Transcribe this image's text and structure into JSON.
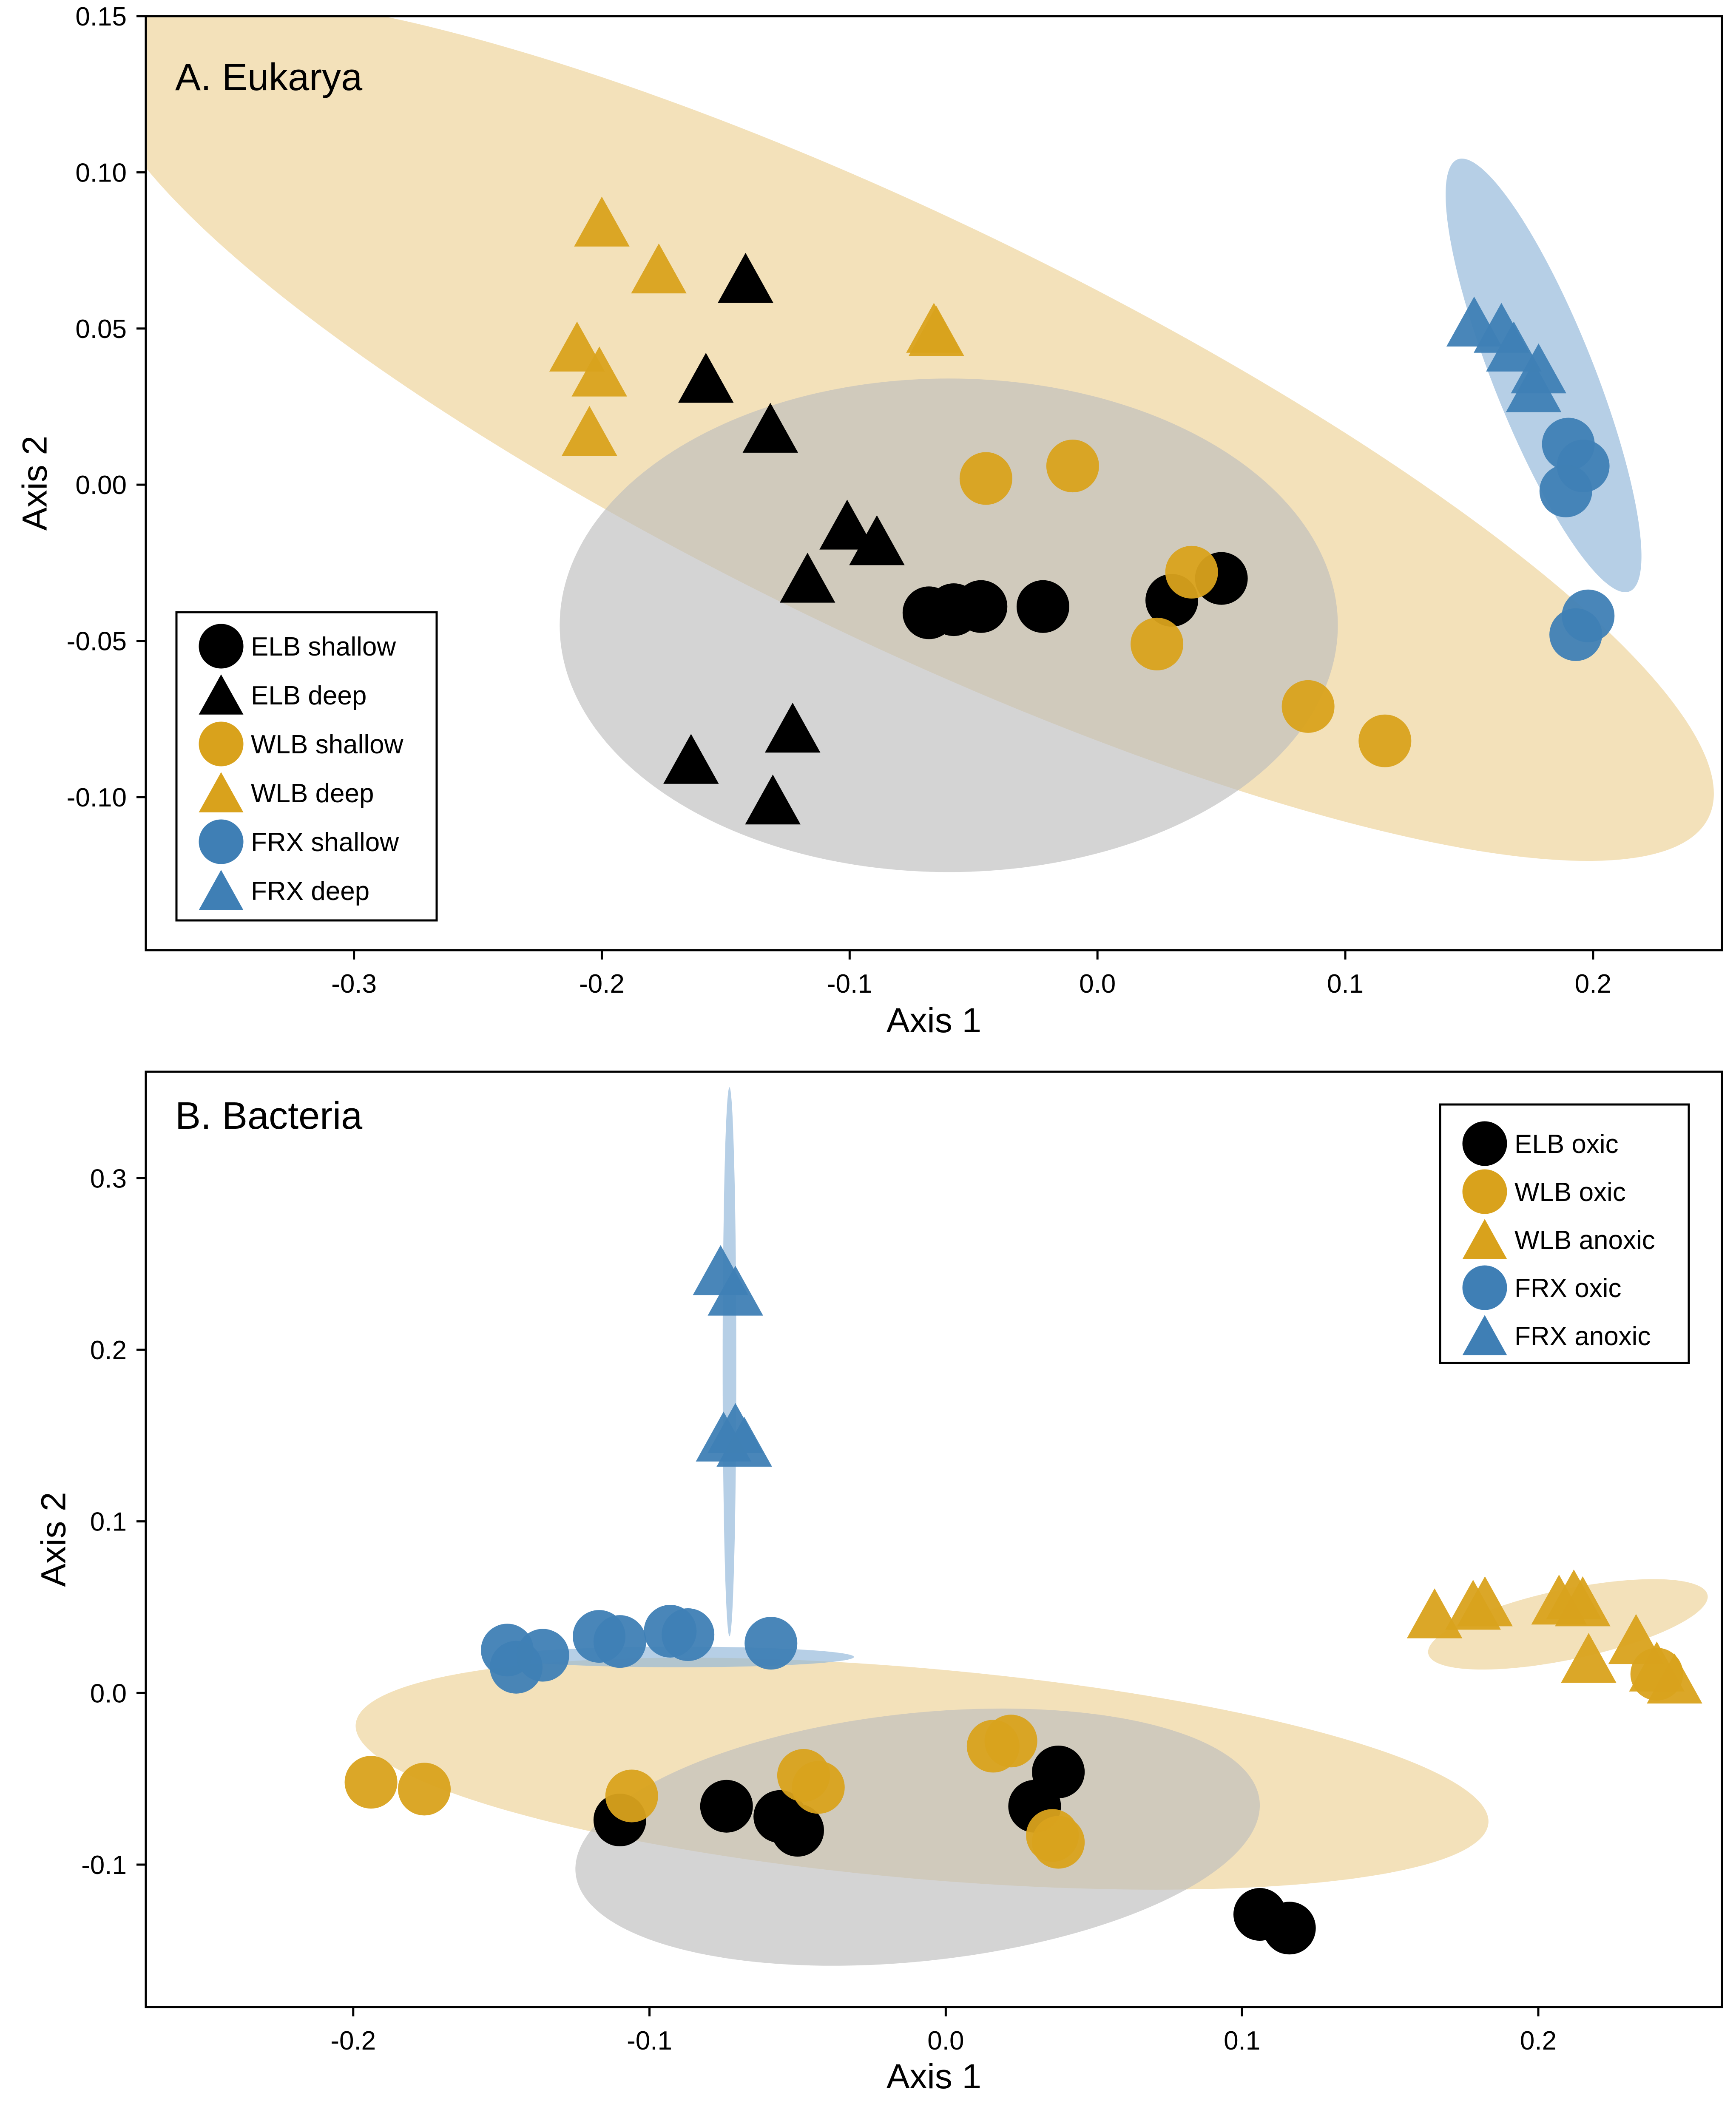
{
  "colors": {
    "black": "#000000",
    "gold": "#d9a21c",
    "blue": "#3f7fb5",
    "gold_ellipse": "#ecd195",
    "blue_ellipse": "#8fb5d8",
    "gray_ellipse": "#bdbdbd"
  },
  "chart_data": [
    {
      "type": "scatter",
      "title": "A. Eukarya",
      "xlabel": "Axis 1",
      "ylabel": "Axis 2",
      "xlim": [
        -0.384,
        0.252
      ],
      "ylim": [
        -0.149,
        0.15
      ],
      "xticks": [
        -0.3,
        -0.2,
        -0.1,
        0.0,
        0.1,
        0.2
      ],
      "xtick_labels": [
        "-0.3",
        "-0.2",
        "-0.1",
        "0.0",
        "0.1",
        "0.2"
      ],
      "yticks": [
        -0.1,
        -0.05,
        0.0,
        0.05,
        0.1,
        0.15
      ],
      "ytick_labels": [
        "-0.10",
        "-0.05",
        "0.00",
        "0.05",
        "0.10",
        "0.15"
      ],
      "legend_position": "bottom-left",
      "ellipses": [
        {
          "group": "WLB",
          "color": "gold_ellipse",
          "cx": -0.078,
          "cy": 0.018,
          "rx": 0.319,
          "ry": 0.075,
          "angle_deg": 25.8
        },
        {
          "group": "ELB",
          "color": "gray_ellipse",
          "cx": -0.06,
          "cy": -0.045,
          "rx": 0.157,
          "ry": 0.079,
          "angle_deg": 0
        },
        {
          "group": "FRX",
          "color": "blue_ellipse",
          "cx": 0.18,
          "cy": 0.035,
          "rx": 0.083,
          "ry": 0.018,
          "angle_deg": 68.3
        }
      ],
      "series": [
        {
          "name": "ELB shallow",
          "marker": "circle",
          "color": "black",
          "points": [
            [
              -0.068,
              -0.041
            ],
            [
              -0.058,
              -0.04
            ],
            [
              -0.047,
              -0.039
            ],
            [
              -0.022,
              -0.039
            ],
            [
              0.03,
              -0.037
            ],
            [
              0.05,
              -0.03
            ]
          ]
        },
        {
          "name": "ELB deep",
          "marker": "triangle",
          "color": "black",
          "points": [
            [
              -0.142,
              0.066
            ],
            [
              -0.158,
              0.034
            ],
            [
              -0.132,
              0.018
            ],
            [
              -0.101,
              -0.013
            ],
            [
              -0.089,
              -0.018
            ],
            [
              -0.117,
              -0.03
            ],
            [
              -0.164,
              -0.088
            ],
            [
              -0.123,
              -0.078
            ],
            [
              -0.131,
              -0.101
            ]
          ]
        },
        {
          "name": "WLB shallow",
          "marker": "circle",
          "color": "gold",
          "points": [
            [
              -0.045,
              0.002
            ],
            [
              -0.01,
              0.006
            ],
            [
              0.038,
              -0.028
            ],
            [
              0.024,
              -0.051
            ],
            [
              0.085,
              -0.071
            ],
            [
              0.116,
              -0.082
            ]
          ]
        },
        {
          "name": "WLB deep",
          "marker": "triangle",
          "color": "gold",
          "points": [
            [
              -0.2,
              0.084
            ],
            [
              -0.177,
              0.069
            ],
            [
              -0.21,
              0.044
            ],
            [
              -0.201,
              0.036
            ],
            [
              -0.205,
              0.017
            ],
            [
              -0.065,
              0.049
            ],
            [
              -0.066,
              0.05
            ]
          ]
        },
        {
          "name": "FRX shallow",
          "marker": "circle",
          "color": "blue",
          "points": [
            [
              0.19,
              0.013
            ],
            [
              0.196,
              0.006
            ],
            [
              0.189,
              -0.002
            ],
            [
              0.198,
              -0.042
            ],
            [
              0.193,
              -0.048
            ]
          ]
        },
        {
          "name": "FRX deep",
          "marker": "triangle",
          "color": "blue",
          "points": [
            [
              0.152,
              0.052
            ],
            [
              0.163,
              0.05
            ],
            [
              0.168,
              0.044
            ],
            [
              0.178,
              0.037
            ],
            [
              0.176,
              0.031
            ]
          ]
        }
      ]
    },
    {
      "type": "scatter",
      "title": "B. Bacteria",
      "xlabel": "Axis 1",
      "ylabel": "Axis 2",
      "xlim": [
        -0.27,
        0.262
      ],
      "ylim": [
        -0.183,
        0.362
      ],
      "xticks": [
        -0.2,
        -0.1,
        0.0,
        0.1,
        0.2
      ],
      "xtick_labels": [
        "-0.2",
        "-0.1",
        "0.0",
        "0.1",
        "0.2"
      ],
      "yticks": [
        -0.1,
        0.0,
        0.1,
        0.2,
        0.3
      ],
      "ytick_labels": [
        "-0.1",
        "0.0",
        "0.1",
        "0.2",
        "0.3"
      ],
      "legend_position": "top-right",
      "ellipses": [
        {
          "group": "WLB oxic",
          "color": "gold_ellipse",
          "cx": -0.008,
          "cy": -0.047,
          "rx": 0.243,
          "ry": 0.045,
          "angle_deg": 5.0
        },
        {
          "group": "ELB",
          "color": "gray_ellipse",
          "cx": -0.0095,
          "cy": -0.084,
          "rx": 0.147,
          "ry": 0.053,
          "angle_deg": -6.1
        },
        {
          "group": "WLB anoxic",
          "color": "gold_ellipse",
          "cx": 0.21,
          "cy": 0.04,
          "rx": 0.061,
          "ry": 0.015,
          "angle_deg": -11.9
        },
        {
          "group": "FRX oxic",
          "color": "blue_ellipse",
          "cx": -0.09,
          "cy": 0.021,
          "rx": 0.059,
          "ry": 0.006,
          "angle_deg": 0
        },
        {
          "group": "FRX anoxic",
          "color": "blue_ellipse",
          "cx": -0.073,
          "cy": 0.193,
          "rx": 0.0023,
          "ry": 0.16,
          "angle_deg": 0
        }
      ],
      "series": [
        {
          "name": "ELB oxic",
          "marker": "circle",
          "color": "black",
          "points": [
            [
              -0.11,
              -0.074
            ],
            [
              -0.074,
              -0.066
            ],
            [
              -0.056,
              -0.072
            ],
            [
              -0.05,
              -0.08
            ],
            [
              0.03,
              -0.066
            ],
            [
              0.038,
              -0.046
            ],
            [
              0.106,
              -0.129
            ],
            [
              0.116,
              -0.137
            ]
          ]
        },
        {
          "name": "WLB oxic",
          "marker": "circle",
          "color": "gold",
          "points": [
            [
              -0.194,
              -0.052
            ],
            [
              -0.176,
              -0.056
            ],
            [
              -0.106,
              -0.06
            ],
            [
              -0.048,
              -0.048
            ],
            [
              -0.043,
              -0.055
            ],
            [
              0.016,
              -0.031
            ],
            [
              0.022,
              -0.028
            ],
            [
              0.036,
              -0.083
            ],
            [
              0.038,
              -0.087
            ],
            [
              0.24,
              0.011
            ]
          ]
        },
        {
          "name": "WLB anoxic",
          "marker": "triangle",
          "color": "gold",
          "points": [
            [
              0.165,
              0.046
            ],
            [
              0.178,
              0.051
            ],
            [
              0.182,
              0.053
            ],
            [
              0.207,
              0.054
            ],
            [
              0.212,
              0.057
            ],
            [
              0.215,
              0.053
            ],
            [
              0.217,
              0.02
            ],
            [
              0.233,
              0.031
            ],
            [
              0.24,
              0.015
            ],
            [
              0.246,
              0.008
            ]
          ]
        },
        {
          "name": "FRX oxic",
          "marker": "circle",
          "color": "blue",
          "points": [
            [
              -0.148,
              0.025
            ],
            [
              -0.145,
              0.015
            ],
            [
              -0.136,
              0.022
            ],
            [
              -0.117,
              0.033
            ],
            [
              -0.11,
              0.03
            ],
            [
              -0.093,
              0.036
            ],
            [
              -0.087,
              0.034
            ],
            [
              -0.059,
              0.029
            ]
          ]
        },
        {
          "name": "FRX anoxic",
          "marker": "triangle",
          "color": "blue",
          "points": [
            [
              -0.076,
              0.246
            ],
            [
              -0.071,
              0.234
            ],
            [
              -0.075,
              0.149
            ],
            [
              -0.071,
              0.154
            ],
            [
              -0.068,
              0.146
            ]
          ]
        }
      ]
    }
  ]
}
